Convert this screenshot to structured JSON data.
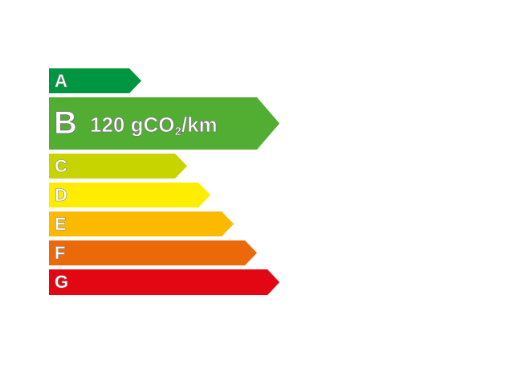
{
  "classes": [
    {
      "letter": "A",
      "color": "#009540"
    },
    {
      "letter": "B",
      "color": "#52ae32"
    },
    {
      "letter": "C",
      "color": "#c8d400"
    },
    {
      "letter": "D",
      "color": "#ffed00"
    },
    {
      "letter": "E",
      "color": "#fbba00"
    },
    {
      "letter": "F",
      "color": "#eb6909"
    },
    {
      "letter": "G",
      "color": "#e30613"
    }
  ],
  "rating": {
    "class": "B",
    "value": "120",
    "unit_prefix": "gCO",
    "unit_subscript": "2",
    "unit_suffix": "/km"
  }
}
